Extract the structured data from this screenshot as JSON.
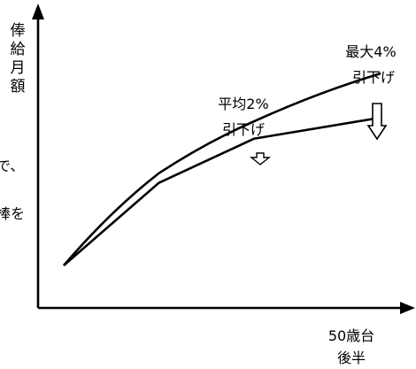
{
  "chart_data": {
    "type": "line",
    "title": "",
    "ylabel_chars": [
      "俸",
      "給",
      "月",
      "額"
    ],
    "xlabel_lines": [
      "50歳台",
      "後半"
    ],
    "xlim": [
      0,
      100
    ],
    "ylim": [
      0,
      100
    ],
    "series": [
      {
        "values_x": [
          0,
          30,
          60,
          100
        ],
        "values_y": [
          0,
          48,
          75,
          100
        ]
      },
      {
        "values_x": [
          0,
          30,
          60,
          100
        ],
        "values_y": [
          0,
          43,
          66,
          77
        ]
      }
    ],
    "annotations": [
      {
        "lines": [
          "平均2%",
          "引下げ"
        ],
        "reduction_pct": 2,
        "arrow": "small-down"
      },
      {
        "lines": [
          "最大4%",
          "引下げ"
        ],
        "reduction_pct": 4,
        "arrow": "large-down"
      }
    ],
    "cut_text_fragments": [
      "で、",
      "棒を"
    ]
  }
}
